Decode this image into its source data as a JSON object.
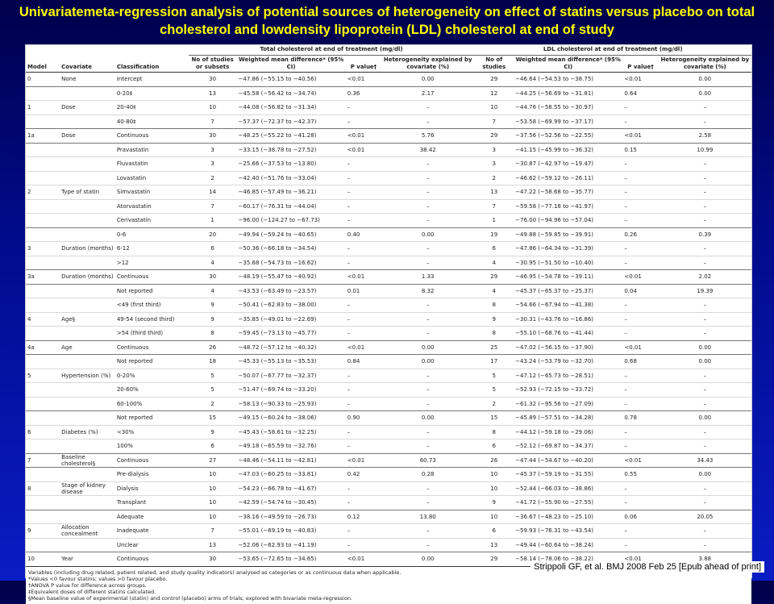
{
  "slide": {
    "title": "Univariatemeta-regression analysis of potential sources of heterogeneity on effect of statins versus placebo on total cholesterol and lowdensity lipoprotein (LDL) cholesterol at end of study",
    "citation": "Strippoli GF, et al. BMJ 2008 Feb 25 [Epub ahead of print]"
  },
  "table": {
    "group_headers": {
      "tc": "Total cholesterol at end of treatment (mg/dl)",
      "ldl": "LDL cholesterol at end of treatment (mg/dl)"
    },
    "col_headers": {
      "model": "Model",
      "covariate": "Covariate",
      "classification": "Classification",
      "tc_n": "No of studies or subsets",
      "tc_wmd": "Weighted mean difference* (95% CI)",
      "tc_p": "P value†",
      "tc_het": "Heterogeneity explained by covariate (%)",
      "ldl_n": "No of studies",
      "ldl_wmd": "Weighted mean difference* (95% CI)",
      "ldl_p": "P value†",
      "ldl_het": "Heterogeneity explained by covariate (%)"
    },
    "rows": [
      {
        "model": "0",
        "cov": "None",
        "cls": "Intercept",
        "n1": "30",
        "w1": "−47.86 (−55.15 to −40.56)",
        "p1": "<0.01",
        "h1": "0.00",
        "n2": "29",
        "w2": "−46.64 (−54.53 to −38.75)",
        "p2": "<0.01",
        "h2": "0.00",
        "start": true
      },
      {
        "model": "",
        "cov": "",
        "cls": "0-20‡",
        "n1": "13",
        "w1": "−45.58 (−56.42 to −34.74)",
        "p1": "0.36",
        "h1": "2.17",
        "n2": "12",
        "w2": "−44.25 (−56.69 to −31.81)",
        "p2": "0.64",
        "h2": "0.00",
        "start": true
      },
      {
        "model": "1",
        "cov": "Dose",
        "cls": "20-40‡",
        "n1": "10",
        "w1": "−44.08 (−56.82 to −31.34)",
        "p1": "–",
        "h1": "–",
        "n2": "10",
        "w2": "−44.76 (−58.55 to −30.97)",
        "p2": "–",
        "h2": "–"
      },
      {
        "model": "",
        "cov": "",
        "cls": "40-80‡",
        "n1": "7",
        "w1": "−57.37 (−72.37 to −42.37)",
        "p1": "–",
        "h1": "–",
        "n2": "7",
        "w2": "−53.58 (−69.99 to −37.17)",
        "p2": "–",
        "h2": "–"
      },
      {
        "model": "1a",
        "cov": "Dose",
        "cls": "Continuous",
        "n1": "30",
        "w1": "−48.25 (−55.22 to −41.28)",
        "p1": "<0.01",
        "h1": "5.76",
        "n2": "29",
        "w2": "−37.56 (−52.56 to −22.55)",
        "p2": "<0.01",
        "h2": "2.58",
        "start": true
      },
      {
        "model": "",
        "cov": "",
        "cls": "Pravastatin",
        "n1": "3",
        "w1": "−33.15 (−38.78 to −27.52)",
        "p1": "<0.01",
        "h1": "38.42",
        "n2": "3",
        "w2": "−41.15 (−45.99 to −36.32)",
        "p2": "0.15",
        "h2": "10.99",
        "start": true
      },
      {
        "model": "",
        "cov": "",
        "cls": "Fluvastatin",
        "n1": "3",
        "w1": "−25.66 (−37.53 to −13.80)",
        "p1": "–",
        "h1": "–",
        "n2": "3",
        "w2": "−30.87 (−42.97 to −19.47)",
        "p2": "–",
        "h2": "–"
      },
      {
        "model": "",
        "cov": "",
        "cls": "Lovastatin",
        "n1": "2",
        "w1": "−42.40 (−51.76 to −33.04)",
        "p1": "–",
        "h1": "–",
        "n2": "2",
        "w2": "−46.62 (−59.12 to −26.11)",
        "p2": "–",
        "h2": "–"
      },
      {
        "model": "2",
        "cov": "Type of statin",
        "cls": "Simvastatin",
        "n1": "14",
        "w1": "−46.85 (−57.49 to −36.21)",
        "p1": "–",
        "h1": "–",
        "n2": "13",
        "w2": "−47.22 (−58.68 to −35.77)",
        "p2": "–",
        "h2": "–"
      },
      {
        "model": "",
        "cov": "",
        "cls": "Atorvastatin",
        "n1": "7",
        "w1": "−60.17 (−76.31 to −44.04)",
        "p1": "–",
        "h1": "–",
        "n2": "7",
        "w2": "−59.58 (−77.18 to −41.97)",
        "p2": "–",
        "h2": "–"
      },
      {
        "model": "",
        "cov": "",
        "cls": "Cerivastatin",
        "n1": "1",
        "w1": "−96.00 (−124.27 to −67.73)",
        "p1": "–",
        "h1": "–",
        "n2": "1",
        "w2": "−76.00 (−94.96 to −57.04)",
        "p2": "–",
        "h2": "–"
      },
      {
        "model": "",
        "cov": "",
        "cls": "0-6",
        "n1": "20",
        "w1": "−49.94 (−59.24 to −40.65)",
        "p1": "0.40",
        "h1": "0.00",
        "n2": "19",
        "w2": "−49.88 (−59.85 to −39.91)",
        "p2": "0.26",
        "h2": "0.39",
        "start": true
      },
      {
        "model": "3",
        "cov": "Duration (months)",
        "cls": "6-12",
        "n1": "6",
        "w1": "−50.36 (−66.18 to −34.54)",
        "p1": "–",
        "h1": "–",
        "n2": "6",
        "w2": "−47.86 (−64.34 to −31.39)",
        "p2": "–",
        "h2": "–"
      },
      {
        "model": "",
        "cov": "",
        "cls": ">12",
        "n1": "4",
        "w1": "−35.68 (−54.73 to −16.62)",
        "p1": "–",
        "h1": "–",
        "n2": "4",
        "w2": "−30.95 (−51.50 to −10.40)",
        "p2": "–",
        "h2": "–"
      },
      {
        "model": "3a",
        "cov": "Duration (months)",
        "cls": "Continuous",
        "n1": "30",
        "w1": "−48.19 (−55.47 to −40.92)",
        "p1": "<0.01",
        "h1": "1.33",
        "n2": "29",
        "w2": "−46.95 (−54.78 to −39.11)",
        "p2": "<0.01",
        "h2": "2.02",
        "start": true
      },
      {
        "model": "",
        "cov": "",
        "cls": "Not reported",
        "n1": "4",
        "w1": "−43.53 (−63.49 to −23.57)",
        "p1": "0.01",
        "h1": "8.32",
        "n2": "4",
        "w2": "−45.37 (−65.37 to −25.37)",
        "p2": "0.04",
        "h2": "19.39",
        "start": true
      },
      {
        "model": "",
        "cov": "",
        "cls": "<49 (first third)",
        "n1": "9",
        "w1": "−50.41 (−62.83 to −38.00)",
        "p1": "–",
        "h1": "–",
        "n2": "8",
        "w2": "−54.66 (−67.94 to −41.38)",
        "p2": "–",
        "h2": "–"
      },
      {
        "model": "4",
        "cov": "Age§",
        "cls": "49-54 (second third)",
        "n1": "9",
        "w1": "−35.85 (−49.01 to −22.69)",
        "p1": "–",
        "h1": "–",
        "n2": "9",
        "w2": "−30.31 (−43.76 to −16.86)",
        "p2": "–",
        "h2": "–"
      },
      {
        "model": "",
        "cov": "",
        "cls": ">54 (third third)",
        "n1": "8",
        "w1": "−59.45 (−73.13 to −45.77)",
        "p1": "–",
        "h1": "–",
        "n2": "8",
        "w2": "−55.10 (−68.76 to −41.44)",
        "p2": "–",
        "h2": "–"
      },
      {
        "model": "4a",
        "cov": "Age",
        "cls": "Continuous",
        "n1": "26",
        "w1": "−48.72 (−57.12 to −40.32)",
        "p1": "<0.01",
        "h1": "0.00",
        "n2": "25",
        "w2": "−47.02 (−56.15 to −37.90)",
        "p2": "<0.01",
        "h2": "0.00",
        "start": true
      },
      {
        "model": "",
        "cov": "",
        "cls": "Not reported",
        "n1": "18",
        "w1": "−45.33 (−55.13 to −35.53)",
        "p1": "0.84",
        "h1": "0.00",
        "n2": "17",
        "w2": "−43.24 (−53.79 to −32.70)",
        "p2": "0.68",
        "h2": "0.00",
        "start": true
      },
      {
        "model": "5",
        "cov": "Hypertension (%)",
        "cls": "0-20%",
        "n1": "5",
        "w1": "−50.07 (−67.77 to −32.37)",
        "p1": "–",
        "h1": "–",
        "n2": "5",
        "w2": "−47.12 (−65.73 to −28.51)",
        "p2": "–",
        "h2": "–"
      },
      {
        "model": "",
        "cov": "",
        "cls": "20-60%",
        "n1": "5",
        "w1": "−51.47 (−69.74 to −33.20)",
        "p1": "–",
        "h1": "–",
        "n2": "5",
        "w2": "−52.93 (−72.15 to −33.72)",
        "p2": "–",
        "h2": "–"
      },
      {
        "model": "",
        "cov": "",
        "cls": "60-100%",
        "n1": "2",
        "w1": "−58.13 (−90.33 to −25.93)",
        "p1": "–",
        "h1": "–",
        "n2": "2",
        "w2": "−61.32 (−95.56 to −27.09)",
        "p2": "–",
        "h2": "–"
      },
      {
        "model": "",
        "cov": "",
        "cls": "Not reported",
        "n1": "15",
        "w1": "−49.15 (−60.24 to −38.06)",
        "p1": "0.90",
        "h1": "0.00",
        "n2": "15",
        "w2": "−45.89 (−57.51 to −34.28)",
        "p2": "0.78",
        "h2": "0.00",
        "start": true
      },
      {
        "model": "6",
        "cov": "Diabetes (%)",
        "cls": "<30%",
        "n1": "9",
        "w1": "−45.43 (−58.61 to −32.25)",
        "p1": "–",
        "h1": "–",
        "n2": "8",
        "w2": "−44.12 (−59.18 to −29.06)",
        "p2": "–",
        "h2": "–"
      },
      {
        "model": "",
        "cov": "",
        "cls": "100%",
        "n1": "6",
        "w1": "−49.18 (−65.59 to −32.76)",
        "p1": "–",
        "h1": "–",
        "n2": "6",
        "w2": "−52.12 (−69.87 to −34.37)",
        "p2": "–",
        "h2": "–"
      },
      {
        "model": "7",
        "cov": "Baseline cholesterol§",
        "cls": "Continuous",
        "n1": "27",
        "w1": "−48.46 (−54.11 to −42.81)",
        "p1": "<0.01",
        "h1": "60.73",
        "n2": "26",
        "w2": "−47.44 (−54.67 to −40.20)",
        "p2": "<0.01",
        "h2": "34.43",
        "start": true
      },
      {
        "model": "",
        "cov": "",
        "cls": "Pre-dialysis",
        "n1": "10",
        "w1": "−47.03 (−60.25 to −33.81)",
        "p1": "0.42",
        "h1": "0.28",
        "n2": "10",
        "w2": "−45.37 (−59.19 to −31.55)",
        "p2": "0.55",
        "h2": "0.00",
        "start": true
      },
      {
        "model": "8",
        "cov": "Stage of kidney disease",
        "cls": "Dialysis",
        "n1": "10",
        "w1": "−54.23 (−66.78 to −41.67)",
        "p1": "–",
        "h1": "–",
        "n2": "10",
        "w2": "−52.44 (−66.03 to −38.86)",
        "p2": "–",
        "h2": "–"
      },
      {
        "model": "",
        "cov": "",
        "cls": "Transplant",
        "n1": "10",
        "w1": "−42.59 (−54.74 to −30.45)",
        "p1": "–",
        "h1": "–",
        "n2": "9",
        "w2": "−41.72 (−55.90 to −27.55)",
        "p2": "–",
        "h2": "–"
      },
      {
        "model": "",
        "cov": "",
        "cls": "Adequate",
        "n1": "10",
        "w1": "−38.16 (−49.59 to −26.73)",
        "p1": "0.12",
        "h1": "13.80",
        "n2": "10",
        "w2": "−36.67 (−48.23 to −25.10)",
        "p2": "0.06",
        "h2": "20.05",
        "start": true
      },
      {
        "model": "9",
        "cov": "Allocation concealment",
        "cls": "Inadequate",
        "n1": "7",
        "w1": "−55.01 (−69.19 to −40.83)",
        "p1": "–",
        "h1": "–",
        "n2": "6",
        "w2": "−59.93 (−76.31 to −43.54)",
        "p2": "–",
        "h2": "–"
      },
      {
        "model": "",
        "cov": "",
        "cls": "Unclear",
        "n1": "13",
        "w1": "−52.06 (−62.93 to −41.19)",
        "p1": "–",
        "h1": "–",
        "n2": "13",
        "w2": "−49.44 (−60.64 to −38.24)",
        "p2": "–",
        "h2": "–"
      },
      {
        "model": "10",
        "cov": "Year",
        "cls": "Continuous",
        "n1": "30",
        "w1": "−53.65 (−72.65 to −34.65)",
        "p1": "<0.01",
        "h1": "0.00",
        "n2": "29",
        "w2": "−58.14 (−78.06 to −38.22)",
        "p2": "<0.01",
        "h2": "3.88",
        "start": true
      }
    ],
    "footnotes": [
      "Variables (including drug related, patient related, and study quality indicators) analysed as categories or as continuous data when applicable.",
      "*Values <0 favour statins; values >0 favour placebo.",
      "†ANOVA P value for difference across groups.",
      "‡Equivalent doses of different statins calculated.",
      "§Mean baseline value of experimental (statin) and control (placebo) arms of trials; explored with bivariate meta-regression."
    ]
  }
}
